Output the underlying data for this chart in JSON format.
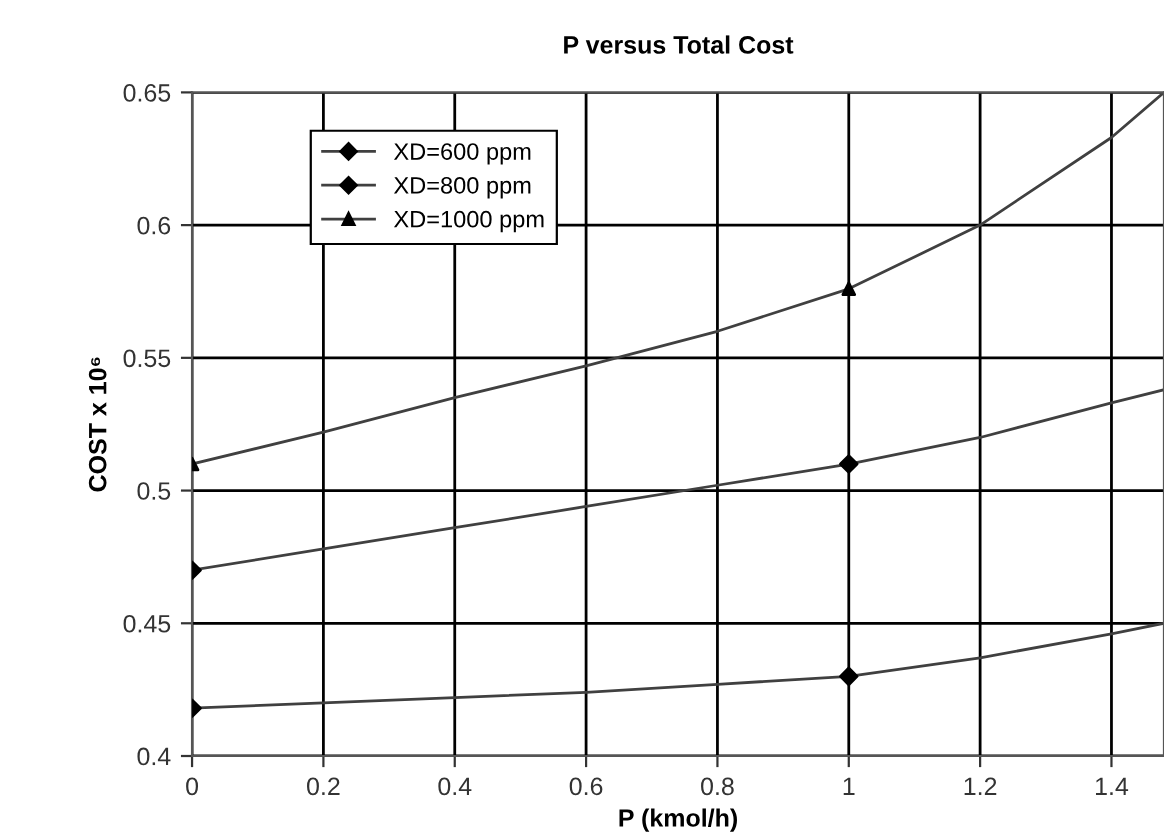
{
  "chart_data": {
    "type": "line",
    "title": "P versus Total Cost",
    "xlabel": "P (kmol/h)",
    "ylabel": "COST x 10⁶",
    "series": [
      {
        "color": "#404040",
        "x": [
          0,
          0.2,
          0.4,
          0.6,
          0.8,
          1,
          1.2,
          1.4,
          1.48
        ],
        "values": [
          0.418,
          0.42,
          0.422,
          0.424,
          0.427,
          0.43,
          0.437,
          0.446,
          0.45
        ],
        "marker": "none"
      },
      {
        "color": "#404040",
        "x": [
          0,
          0.2,
          0.4,
          0.6,
          0.8,
          1,
          1.2,
          1.4,
          1.48
        ],
        "values": [
          0.47,
          0.478,
          0.486,
          0.494,
          0.502,
          0.51,
          0.52,
          0.533,
          0.538
        ],
        "marker": "none"
      },
      {
        "color": "#404040",
        "x": [
          0,
          0.2,
          0.4,
          0.6,
          0.8,
          1,
          1.2,
          1.4,
          1.48
        ],
        "values": [
          0.51,
          0.522,
          0.535,
          0.547,
          0.56,
          0.576,
          0.6,
          0.633,
          0.65
        ],
        "marker": "none"
      },
      {
        "type": "scatter",
        "name": "XD=600 ppm",
        "color": "#000000",
        "x": [
          0,
          1
        ],
        "values": [
          0.418,
          0.43
        ],
        "marker": "diamond"
      },
      {
        "type": "scatter",
        "name": "XD=800 ppm",
        "color": "#000000",
        "x": [
          0,
          1
        ],
        "values": [
          0.47,
          0.51
        ],
        "marker": "diamond"
      },
      {
        "type": "scatter",
        "name": "XD=1000 ppm",
        "color": "#000000",
        "x": [
          0,
          1
        ],
        "values": [
          0.51,
          0.576
        ],
        "marker": "triangle"
      }
    ],
    "xlim": [
      0,
      1.48
    ],
    "ylim": [
      0.4,
      0.65
    ],
    "xticks": [
      0,
      0.2,
      0.4,
      0.6,
      0.8,
      1,
      1.2,
      1.4
    ],
    "yticks": [
      0.4,
      0.45,
      0.5,
      0.55,
      0.6,
      0.65
    ],
    "grid": true,
    "legend": "top left"
  }
}
